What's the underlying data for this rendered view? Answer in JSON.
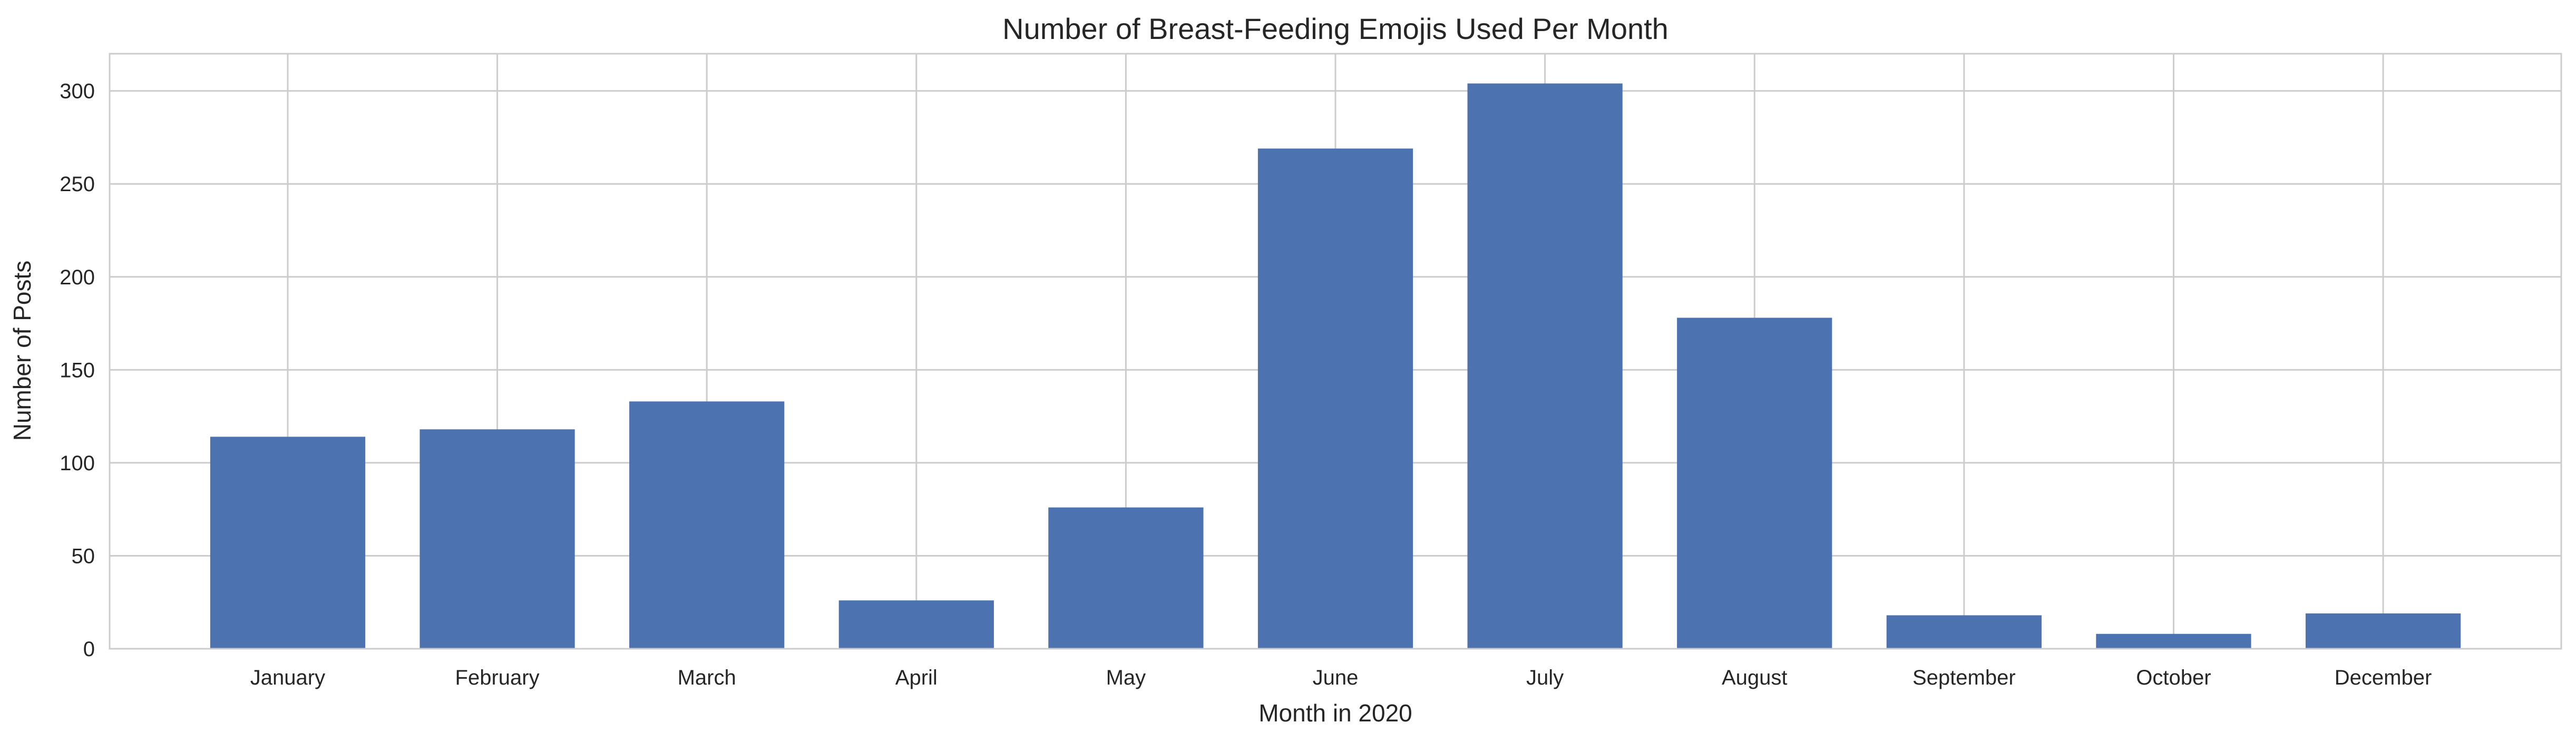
{
  "chart_data": {
    "type": "bar",
    "title": "Number of Breast-Feeding Emojis Used Per Month",
    "xlabel": "Month in 2020",
    "ylabel": "Number of Posts",
    "categories": [
      "January",
      "February",
      "March",
      "April",
      "May",
      "June",
      "July",
      "August",
      "September",
      "October",
      "December"
    ],
    "values": [
      114,
      118,
      133,
      26,
      76,
      269,
      304,
      178,
      18,
      8,
      19
    ],
    "ylim": [
      0,
      320
    ],
    "yticks": [
      0,
      50,
      100,
      150,
      200,
      250,
      300
    ],
    "grid": true,
    "bar_color": "#4c72b0",
    "grid_color": "#cccccc"
  }
}
